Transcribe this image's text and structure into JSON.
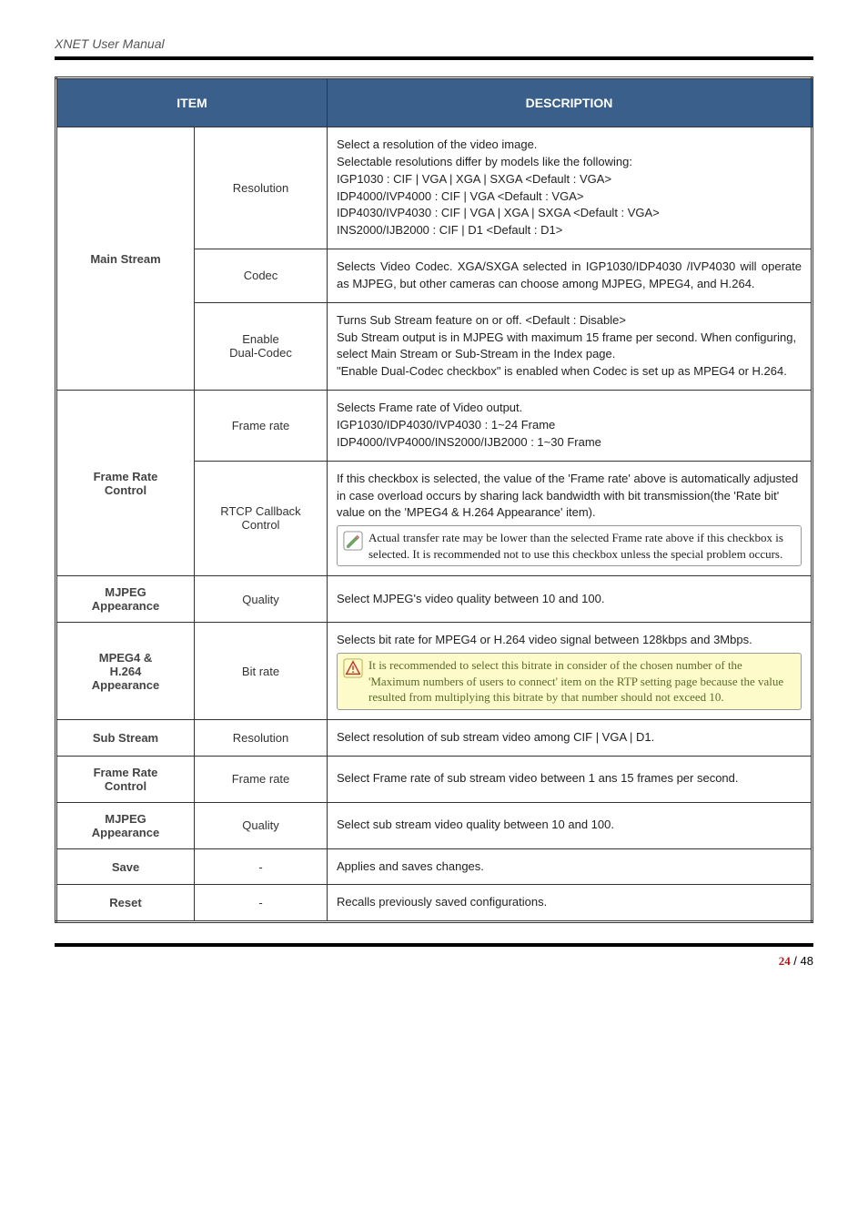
{
  "header": {
    "title": "XNET User Manual"
  },
  "table": {
    "head": {
      "item": "ITEM",
      "desc": "DESCRIPTION"
    },
    "rows": [
      {
        "label": "Main Stream",
        "subrows": [
          {
            "sub": "Resolution",
            "desc": "Select a resolution of the video image.\nSelectable resolutions differ by models like the following:\nIGP1030 : CIF | VGA | XGA | SXGA <Default : VGA>\nIDP4000/IVP4000 : CIF | VGA <Default : VGA>\nIDP4030/IVP4030 : CIF | VGA | XGA | SXGA <Default : VGA>\nINS2000/IJB2000 : CIF | D1 <Default : D1>"
          },
          {
            "sub": "Codec",
            "desc": "Selects Video Codec. XGA/SXGA selected in IGP1030/IDP4030 /IVP4030 will operate as MJPEG, but other cameras can choose among MJPEG, MPEG4, and H.264.",
            "justify": true
          },
          {
            "sub": "Enable\nDual-Codec",
            "desc": "Turns Sub Stream feature on or off. <Default : Disable>\nSub Stream output is in MJPEG with maximum 15 frame per second. When configuring, select Main Stream or Sub-Stream in the Index page.\n\"Enable Dual-Codec checkbox\" is enabled when Codec is set up as MPEG4 or H.264.",
            "justifyPartial": true
          }
        ]
      },
      {
        "label": "Frame Rate Control",
        "subrows": [
          {
            "sub": "Frame rate",
            "desc": "Selects Frame rate of Video output.\nIGP1030/IDP4030/IVP4030 : 1~24 Frame\nIDP4000/IVP4000/INS2000/IJB2000 : 1~30 Frame"
          },
          {
            "sub": "RTCP Callback Control",
            "desc": "If this checkbox is selected, the value of the 'Frame rate' above is automatically adjusted in case overload occurs by sharing lack bandwidth with bit transmission(the 'Rate bit' value on the 'MPEG4 & H.264 Appearance' item).",
            "note": {
              "type": "pencil",
              "text": "Actual transfer rate may be lower than the selected Frame rate above if this checkbox is selected. It is recommended not to use this checkbox unless the special problem occurs."
            }
          }
        ]
      },
      {
        "label": "MJPEG Appearance",
        "subrows": [
          {
            "sub": "Quality",
            "desc": "Select MJPEG's video quality between 10 and 100."
          }
        ]
      },
      {
        "label": "MPEG4 & H.264 Appearance",
        "subrows": [
          {
            "sub": "Bit rate",
            "desc": "Selects bit rate for MPEG4 or H.264 video signal between 128kbps and 3Mbps.",
            "note": {
              "type": "warn",
              "text": "It is recommended to select this bitrate in consider of the chosen number of the 'Maximum numbers of users to connect' item on the RTP setting page because the value resulted from multiplying this bitrate by that number should not exceed 10."
            }
          }
        ]
      },
      {
        "label": "Sub Stream",
        "subrows": [
          {
            "sub": "Resolution",
            "desc": "Select resolution of sub stream video among CIF | VGA | D1."
          }
        ]
      },
      {
        "label": "Frame Rate Control",
        "subrows": [
          {
            "sub": "Frame rate",
            "desc": "Select Frame rate of sub stream video between 1 ans 15 frames per second.",
            "justify": true
          }
        ]
      },
      {
        "label": "MJPEG Appearance",
        "subrows": [
          {
            "sub": "Quality",
            "desc": "Select sub stream video quality between 10 and 100."
          }
        ]
      },
      {
        "label": "Save",
        "subrows": [
          {
            "sub": "-",
            "desc": "Applies and saves changes."
          }
        ]
      },
      {
        "label": "Reset",
        "subrows": [
          {
            "sub": "-",
            "desc": "Recalls previously saved configurations."
          }
        ]
      }
    ]
  },
  "footer": {
    "cur": "24",
    "sep": " / ",
    "total": "48"
  },
  "colors": {
    "header_bg": "#3a5f8a",
    "note_yellow_bg": "#fdfbc9",
    "note_yellow_text": "#5a6b2a"
  }
}
